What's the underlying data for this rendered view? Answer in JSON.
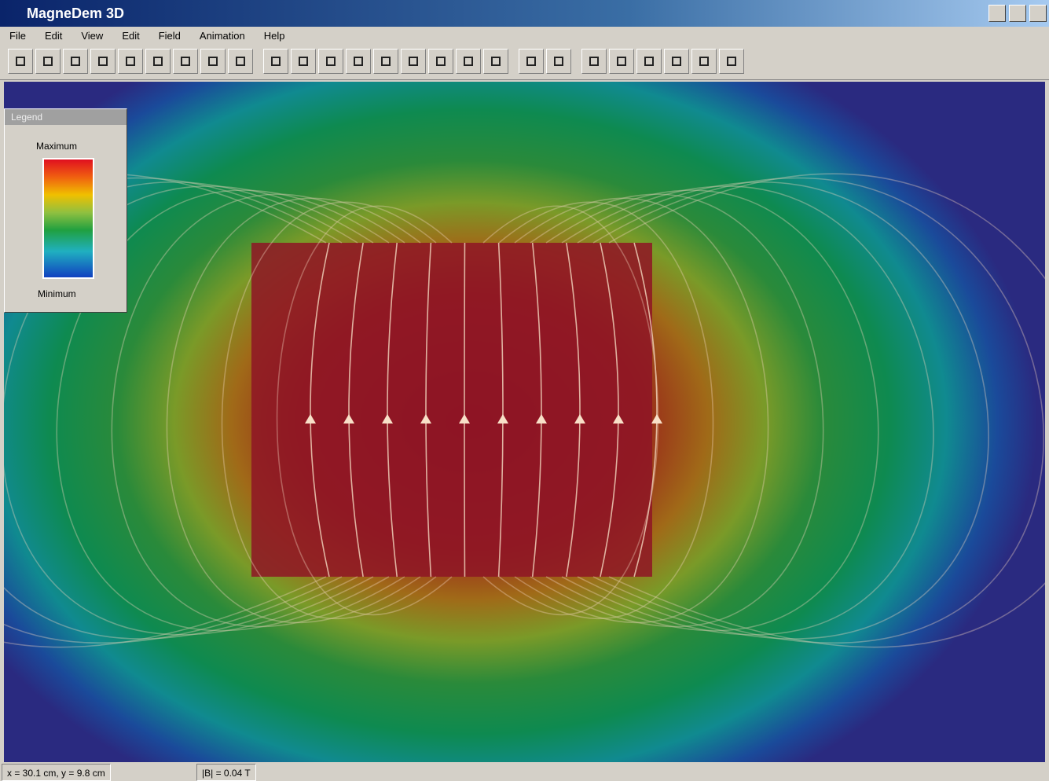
{
  "window": {
    "title": "MagneDem 3D"
  },
  "menu": [
    "File",
    "Edit",
    "View",
    "Edit",
    "Field",
    "Animation",
    "Help"
  ],
  "legend": {
    "title": "Legend",
    "max_label": "Maximum",
    "min_label": "Minimum"
  },
  "status": [
    "x = 30.1 cm, y = 9.8 cm",
    "|B| = 0.04 T"
  ]
}
